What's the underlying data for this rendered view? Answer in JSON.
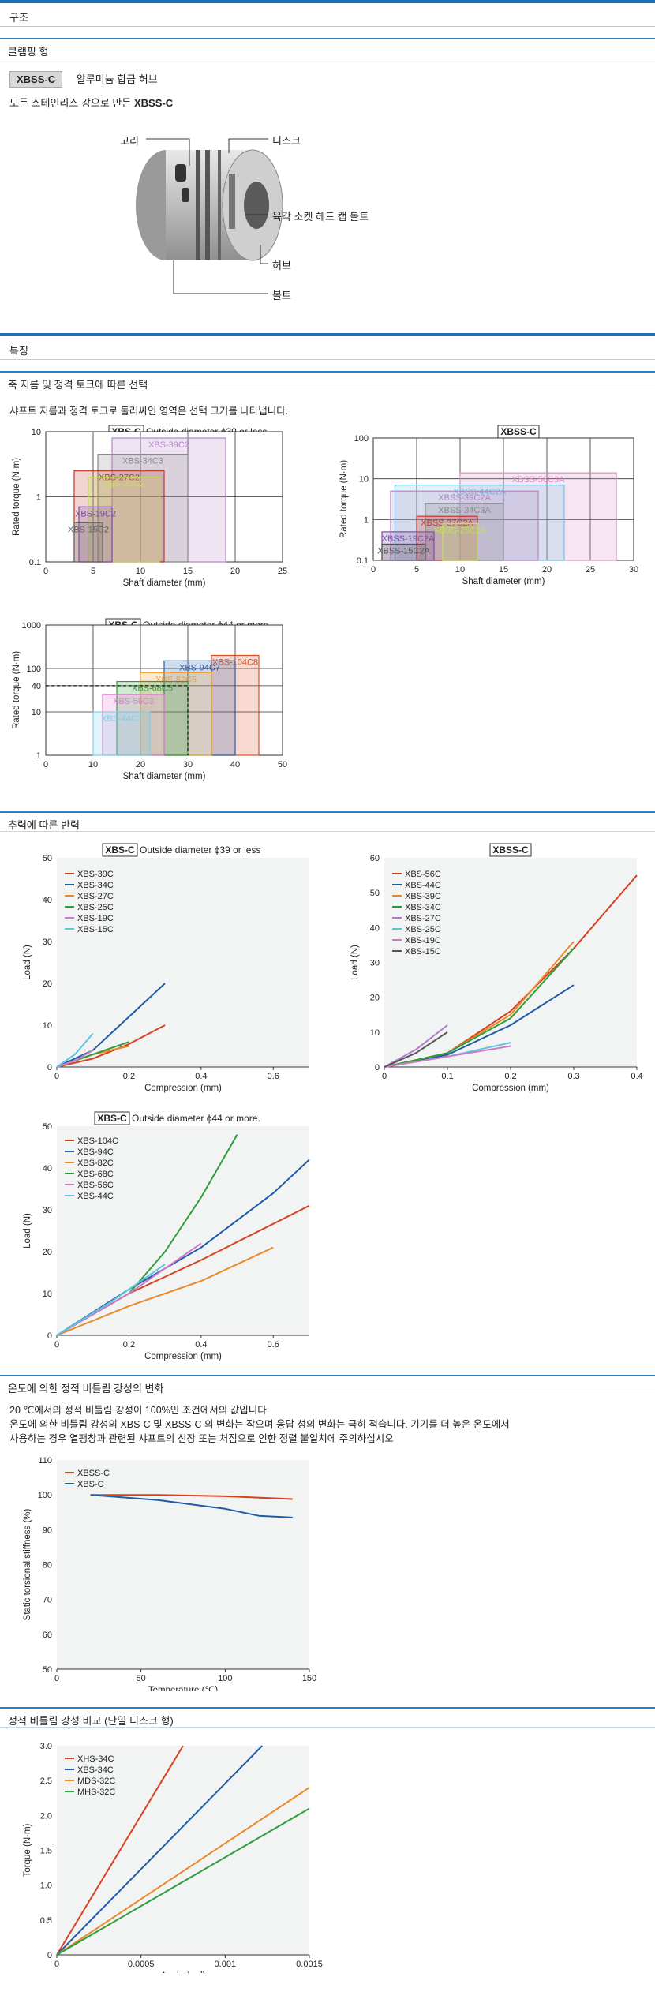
{
  "sections": {
    "structure": "구조",
    "clamping": "클램핑 형",
    "features": "특징",
    "selection": "축 지름 및 정격 토크에 따른 선택",
    "reaction": "추력에 따른 반력",
    "temperature": "온도에 의한 정적 비틀림 강성의 변화",
    "stiffness": "정적 비틀림 강성 비교 (단일 디스크 형)"
  },
  "product": {
    "badge": "XBSS-C",
    "badge_desc": "알루미늄 합금 허브",
    "line_prefix": "모든 스테인리스 강으로 만든",
    "line_model": "XBSS-C"
  },
  "diagram_labels": {
    "collar": "고리",
    "disc": "디스크",
    "cap_bolt": "육각 소켓 헤드 캡 볼트",
    "hub": "허브",
    "bolt": "볼트"
  },
  "selection_note": "샤프트 지름과 정격 토크로 둘러싸인 영역은 선택 크기를 나타냅니다.",
  "temp_note": [
    "20 ℃에서의 정적 비틀림 강성이 100%인 조건에서의 값입니다.",
    "온도에 의한 비틀림 강성의 XBS-C 및 XBSS-C 의 변화는 작으며 응답 성의 변화는 극히 적습니다. 기기를 더 높은 온도에서",
    "사용하는 경우 열팽창과 관련된 샤프트의 신장 또는 처짐으로 인한 정렬 불일치에 주의하십시오"
  ],
  "colors": {
    "section_blue": "#1a6fb5",
    "plot_bg": "#f2f4f4"
  },
  "chart_data": [
    {
      "id": "sel1",
      "type": "area",
      "title_badge": "XBS-C",
      "title": "Outside diameter ϕ39 or less",
      "xlabel": "Shaft diameter (mm)",
      "ylabel": "Rated torque (N·m)",
      "xlim": [
        0,
        25
      ],
      "ylim": [
        0.1,
        10
      ],
      "log_y": true,
      "xticks": [
        "0",
        "5",
        "10",
        "15",
        "20",
        "25"
      ],
      "yticks": [
        "0.1",
        "1",
        "10"
      ],
      "regions": [
        {
          "name": "XBS-39C2",
          "x": [
            7,
            19
          ],
          "y": [
            0.1,
            8
          ],
          "color": "#b584c4"
        },
        {
          "name": "XBS-34C3",
          "x": [
            5.5,
            15
          ],
          "y": [
            0.1,
            4.5
          ],
          "color": "#8a8a8a"
        },
        {
          "name": "XBS-27C2",
          "x": [
            3,
            12.5
          ],
          "y": [
            0.1,
            2.5
          ],
          "color": "#c0392b"
        },
        {
          "name": "XBS-25C2",
          "x": [
            4.5,
            12
          ],
          "y": [
            0.1,
            2
          ],
          "color": "#c6e05a"
        },
        {
          "name": "XBS-19C2",
          "x": [
            3.5,
            7
          ],
          "y": [
            0.1,
            0.7
          ],
          "color": "#7b4fa6"
        },
        {
          "name": "XBS-15C2",
          "x": [
            3,
            6
          ],
          "y": [
            0.1,
            0.4
          ],
          "color": "#666666"
        }
      ]
    },
    {
      "id": "sel2",
      "type": "area",
      "title_badge": "XBSS-C",
      "title": "",
      "xlabel": "Shaft diameter (mm)",
      "ylabel": "Rated torque (N·m)",
      "xlim": [
        0,
        30
      ],
      "ylim": [
        0.1,
        100
      ],
      "log_y": true,
      "xticks": [
        "0",
        "5",
        "10",
        "15",
        "20",
        "25",
        "30"
      ],
      "yticks": [
        "0.1",
        "1",
        "10",
        "100"
      ],
      "regions": [
        {
          "name": "XBSS-56C3A",
          "x": [
            10,
            28
          ],
          "y": [
            0.1,
            14
          ],
          "color": "#d48fc4"
        },
        {
          "name": "XBSS-44C2A",
          "x": [
            2.5,
            22
          ],
          "y": [
            0.1,
            7
          ],
          "color": "#6fc4e0"
        },
        {
          "name": "XBSS-39C2A",
          "x": [
            2,
            19
          ],
          "y": [
            0.1,
            5
          ],
          "color": "#b584c4"
        },
        {
          "name": "XBSS-34C3A",
          "x": [
            6,
            15
          ],
          "y": [
            0.1,
            2.5
          ],
          "color": "#8a8a8a"
        },
        {
          "name": "XBSS-27C2A",
          "x": [
            5,
            12
          ],
          "y": [
            0.1,
            1.2
          ],
          "color": "#c0392b"
        },
        {
          "name": "XBSS-25C2A",
          "x": [
            8,
            12
          ],
          "y": [
            0.1,
            0.8
          ],
          "color": "#c6e05a"
        },
        {
          "name": "XBSS-19C2A",
          "x": [
            1,
            7
          ],
          "y": [
            0.1,
            0.5
          ],
          "color": "#7b4fa6"
        },
        {
          "name": "XBSS-15C2A",
          "x": [
            1,
            6
          ],
          "y": [
            0.1,
            0.25
          ],
          "color": "#555555"
        }
      ]
    },
    {
      "id": "sel3",
      "type": "area",
      "title_badge": "XBS-C",
      "title": "Outside diameter ϕ44 or more.",
      "xlabel": "Shaft diameter (mm)",
      "ylabel": "Rated torque (N·m)",
      "xlim": [
        0,
        50
      ],
      "ylim": [
        1,
        1000
      ],
      "log_y": true,
      "xticks": [
        "0",
        "10",
        "20",
        "30",
        "40",
        "50"
      ],
      "yticks": [
        "1",
        "10",
        "40",
        "100",
        "1000"
      ],
      "regions": [
        {
          "name": "XBS-104C8",
          "x": [
            35,
            45
          ],
          "y": [
            1,
            200
          ],
          "color": "#d9502a"
        },
        {
          "name": "XBS-94C7",
          "x": [
            25,
            40
          ],
          "y": [
            1,
            150
          ],
          "color": "#2a5ca8"
        },
        {
          "name": "XBS-82C5",
          "x": [
            20,
            35
          ],
          "y": [
            1,
            80
          ],
          "color": "#f0a030"
        },
        {
          "name": "XBS-68C5",
          "x": [
            15,
            30
          ],
          "y": [
            1,
            50
          ],
          "color": "#2e9e3a"
        },
        {
          "name": "XBS-56C3",
          "x": [
            12,
            25
          ],
          "y": [
            1,
            25
          ],
          "color": "#e07ad0"
        },
        {
          "name": "XBS-44C2",
          "x": [
            10,
            22
          ],
          "y": [
            1,
            10
          ],
          "color": "#7ed0e8"
        }
      ],
      "dashed_ref": {
        "x": 30,
        "y": 40
      }
    },
    {
      "id": "rf1",
      "type": "line",
      "title_badge": "XBS-C",
      "title": "Outside diameter ϕ39 or less",
      "xlabel": "Compression (mm)",
      "ylabel": "Load (N)",
      "xlim": [
        0,
        0.7
      ],
      "ylim": [
        0,
        50
      ],
      "xticks": [
        [
          "0",
          0
        ],
        [
          "0.2",
          0.2
        ],
        [
          "0.4",
          0.4
        ],
        [
          "0.6",
          0.6
        ]
      ],
      "yticks": [
        0,
        10,
        20,
        30,
        40,
        50
      ],
      "series": [
        {
          "name": "XBS-39C",
          "color": "#d9401f",
          "points": [
            [
              0,
              0
            ],
            [
              0.1,
              2
            ],
            [
              0.2,
              5.5
            ],
            [
              0.3,
              10
            ]
          ]
        },
        {
          "name": "XBS-34C",
          "color": "#1f5ca8",
          "points": [
            [
              0,
              0
            ],
            [
              0.1,
              4
            ],
            [
              0.2,
              12
            ],
            [
              0.3,
              20
            ]
          ]
        },
        {
          "name": "XBS-27C",
          "color": "#e8892a",
          "points": [
            [
              0,
              0
            ],
            [
              0.1,
              3
            ],
            [
              0.2,
              5
            ]
          ]
        },
        {
          "name": "XBS-25C",
          "color": "#2e9e3a",
          "points": [
            [
              0,
              0
            ],
            [
              0.1,
              3
            ],
            [
              0.2,
              6
            ]
          ]
        },
        {
          "name": "XBS-19C",
          "color": "#c97ad0",
          "points": [
            [
              0,
              0
            ],
            [
              0.05,
              1.5
            ],
            [
              0.1,
              4
            ]
          ]
        },
        {
          "name": "XBS-15C",
          "color": "#5bc4e0",
          "points": [
            [
              0,
              0
            ],
            [
              0.05,
              3
            ],
            [
              0.1,
              8
            ]
          ]
        }
      ]
    },
    {
      "id": "rf2",
      "type": "line",
      "title_badge": "XBSS-C",
      "title": "",
      "xlabel": "Compression (mm)",
      "ylabel": "Load (N)",
      "xlim": [
        0,
        0.4
      ],
      "ylim": [
        0,
        60
      ],
      "xticks": [
        [
          "0",
          0
        ],
        [
          "0.1",
          0.1
        ],
        [
          "0.2",
          0.2
        ],
        [
          "0.3",
          0.3
        ],
        [
          "0.4",
          0.4
        ]
      ],
      "yticks": [
        0,
        10,
        20,
        30,
        40,
        50,
        60
      ],
      "series": [
        {
          "name": "XBS-56C",
          "color": "#d9401f",
          "points": [
            [
              0,
              0
            ],
            [
              0.1,
              4
            ],
            [
              0.2,
              16
            ],
            [
              0.3,
              34
            ],
            [
              0.4,
              55
            ]
          ]
        },
        {
          "name": "XBS-44C",
          "color": "#1f5ca8",
          "points": [
            [
              0,
              0
            ],
            [
              0.1,
              3.5
            ],
            [
              0.2,
              12
            ],
            [
              0.3,
              23.5
            ]
          ]
        },
        {
          "name": "XBS-39C",
          "color": "#e8892a",
          "points": [
            [
              0,
              0
            ],
            [
              0.1,
              4
            ],
            [
              0.2,
              15
            ],
            [
              0.3,
              36
            ]
          ]
        },
        {
          "name": "XBS-34C",
          "color": "#2e9e3a",
          "points": [
            [
              0,
              0
            ],
            [
              0.1,
              4
            ],
            [
              0.2,
              14
            ],
            [
              0.3,
              34
            ]
          ]
        },
        {
          "name": "XBS-27C",
          "color": "#b07bd0",
          "points": [
            [
              0,
              0
            ],
            [
              0.05,
              5
            ],
            [
              0.1,
              12
            ]
          ]
        },
        {
          "name": "XBS-25C",
          "color": "#5bc4e0",
          "points": [
            [
              0,
              0
            ],
            [
              0.1,
              3
            ],
            [
              0.2,
              7
            ]
          ]
        },
        {
          "name": "XBS-19C",
          "color": "#d07ac4",
          "points": [
            [
              0,
              0
            ],
            [
              0.1,
              3
            ],
            [
              0.2,
              6
            ]
          ]
        },
        {
          "name": "XBS-15C",
          "color": "#555555",
          "points": [
            [
              0,
              0
            ],
            [
              0.05,
              4
            ],
            [
              0.1,
              10
            ]
          ]
        }
      ]
    },
    {
      "id": "rf3",
      "type": "line",
      "title_badge": "XBS-C",
      "title": "Outside diameter ϕ44 or more.",
      "xlabel": "Compression (mm)",
      "ylabel": "Load (N)",
      "xlim": [
        0,
        0.7
      ],
      "ylim": [
        0,
        50
      ],
      "xticks": [
        [
          "0",
          0
        ],
        [
          "0.2",
          0.2
        ],
        [
          "0.4",
          0.4
        ],
        [
          "0.6",
          0.6
        ]
      ],
      "yticks": [
        0,
        10,
        20,
        30,
        40,
        50
      ],
      "series": [
        {
          "name": "XBS-104C",
          "color": "#d9401f",
          "points": [
            [
              0,
              0
            ],
            [
              0.2,
              10
            ],
            [
              0.4,
              18
            ],
            [
              0.7,
              31
            ]
          ]
        },
        {
          "name": "XBS-94C",
          "color": "#1f5ca8",
          "points": [
            [
              0,
              0
            ],
            [
              0.2,
              11
            ],
            [
              0.4,
              21
            ],
            [
              0.6,
              34
            ],
            [
              0.7,
              42
            ]
          ]
        },
        {
          "name": "XBS-82C",
          "color": "#e8892a",
          "points": [
            [
              0,
              0
            ],
            [
              0.2,
              7
            ],
            [
              0.4,
              13
            ],
            [
              0.6,
              21
            ]
          ]
        },
        {
          "name": "XBS-68C",
          "color": "#2e9e3a",
          "points": [
            [
              0,
              0
            ],
            [
              0.2,
              10
            ],
            [
              0.3,
              20
            ],
            [
              0.4,
              33
            ],
            [
              0.5,
              48
            ]
          ]
        },
        {
          "name": "XBS-56C",
          "color": "#d07ac4",
          "points": [
            [
              0,
              0
            ],
            [
              0.2,
              10
            ],
            [
              0.4,
              22
            ]
          ]
        },
        {
          "name": "XBS-44C",
          "color": "#5bc4e0",
          "points": [
            [
              0,
              0
            ],
            [
              0.15,
              8
            ],
            [
              0.3,
              17
            ]
          ]
        }
      ]
    },
    {
      "id": "temp",
      "type": "line",
      "title_badge": "",
      "title": "",
      "xlabel": "Temperature (℃)",
      "ylabel": "Static torsional stiffness (%)",
      "xlim": [
        0,
        150
      ],
      "ylim": [
        50,
        110
      ],
      "xticks": [
        [
          "0",
          0
        ],
        [
          "50",
          50
        ],
        [
          "100",
          100
        ],
        [
          "150",
          150
        ]
      ],
      "yticks": [
        50,
        60,
        70,
        80,
        90,
        100,
        110
      ],
      "series": [
        {
          "name": "XBSS-C",
          "color": "#d9401f",
          "points": [
            [
              20,
              100
            ],
            [
              60,
              100
            ],
            [
              100,
              99.6
            ],
            [
              140,
              98.8
            ]
          ]
        },
        {
          "name": "XBS-C",
          "color": "#1f5ca8",
          "points": [
            [
              20,
              100
            ],
            [
              60,
              98.5
            ],
            [
              100,
              96
            ],
            [
              120,
              94
            ],
            [
              140,
              93.5
            ]
          ]
        }
      ]
    },
    {
      "id": "stiff",
      "type": "line",
      "title_badge": "",
      "title": "",
      "xlabel": "Angle (rad)",
      "ylabel": "Torque (N·m)",
      "xlim": [
        0,
        0.0015
      ],
      "ylim": [
        0,
        3
      ],
      "xticks": [
        [
          "0",
          0
        ],
        [
          "0.0005",
          0.0005
        ],
        [
          "0.001",
          0.001
        ],
        [
          "0.0015",
          0.0015
        ]
      ],
      "yticks": [
        "0",
        "0.5",
        "1.0",
        "1.5",
        "2.0",
        "2.5",
        "3.0"
      ],
      "series": [
        {
          "name": "XHS-34C",
          "color": "#d9401f",
          "points": [
            [
              0,
              0
            ],
            [
              0.00075,
              3
            ]
          ]
        },
        {
          "name": "XBS-34C",
          "color": "#1f5ca8",
          "points": [
            [
              0,
              0
            ],
            [
              0.00122,
              3
            ]
          ]
        },
        {
          "name": "MDS-32C",
          "color": "#e8892a",
          "points": [
            [
              0,
              0
            ],
            [
              0.0015,
              2.4
            ]
          ]
        },
        {
          "name": "MHS-32C",
          "color": "#2e9e3a",
          "points": [
            [
              0,
              0
            ],
            [
              0.0015,
              2.1
            ]
          ]
        }
      ]
    }
  ]
}
